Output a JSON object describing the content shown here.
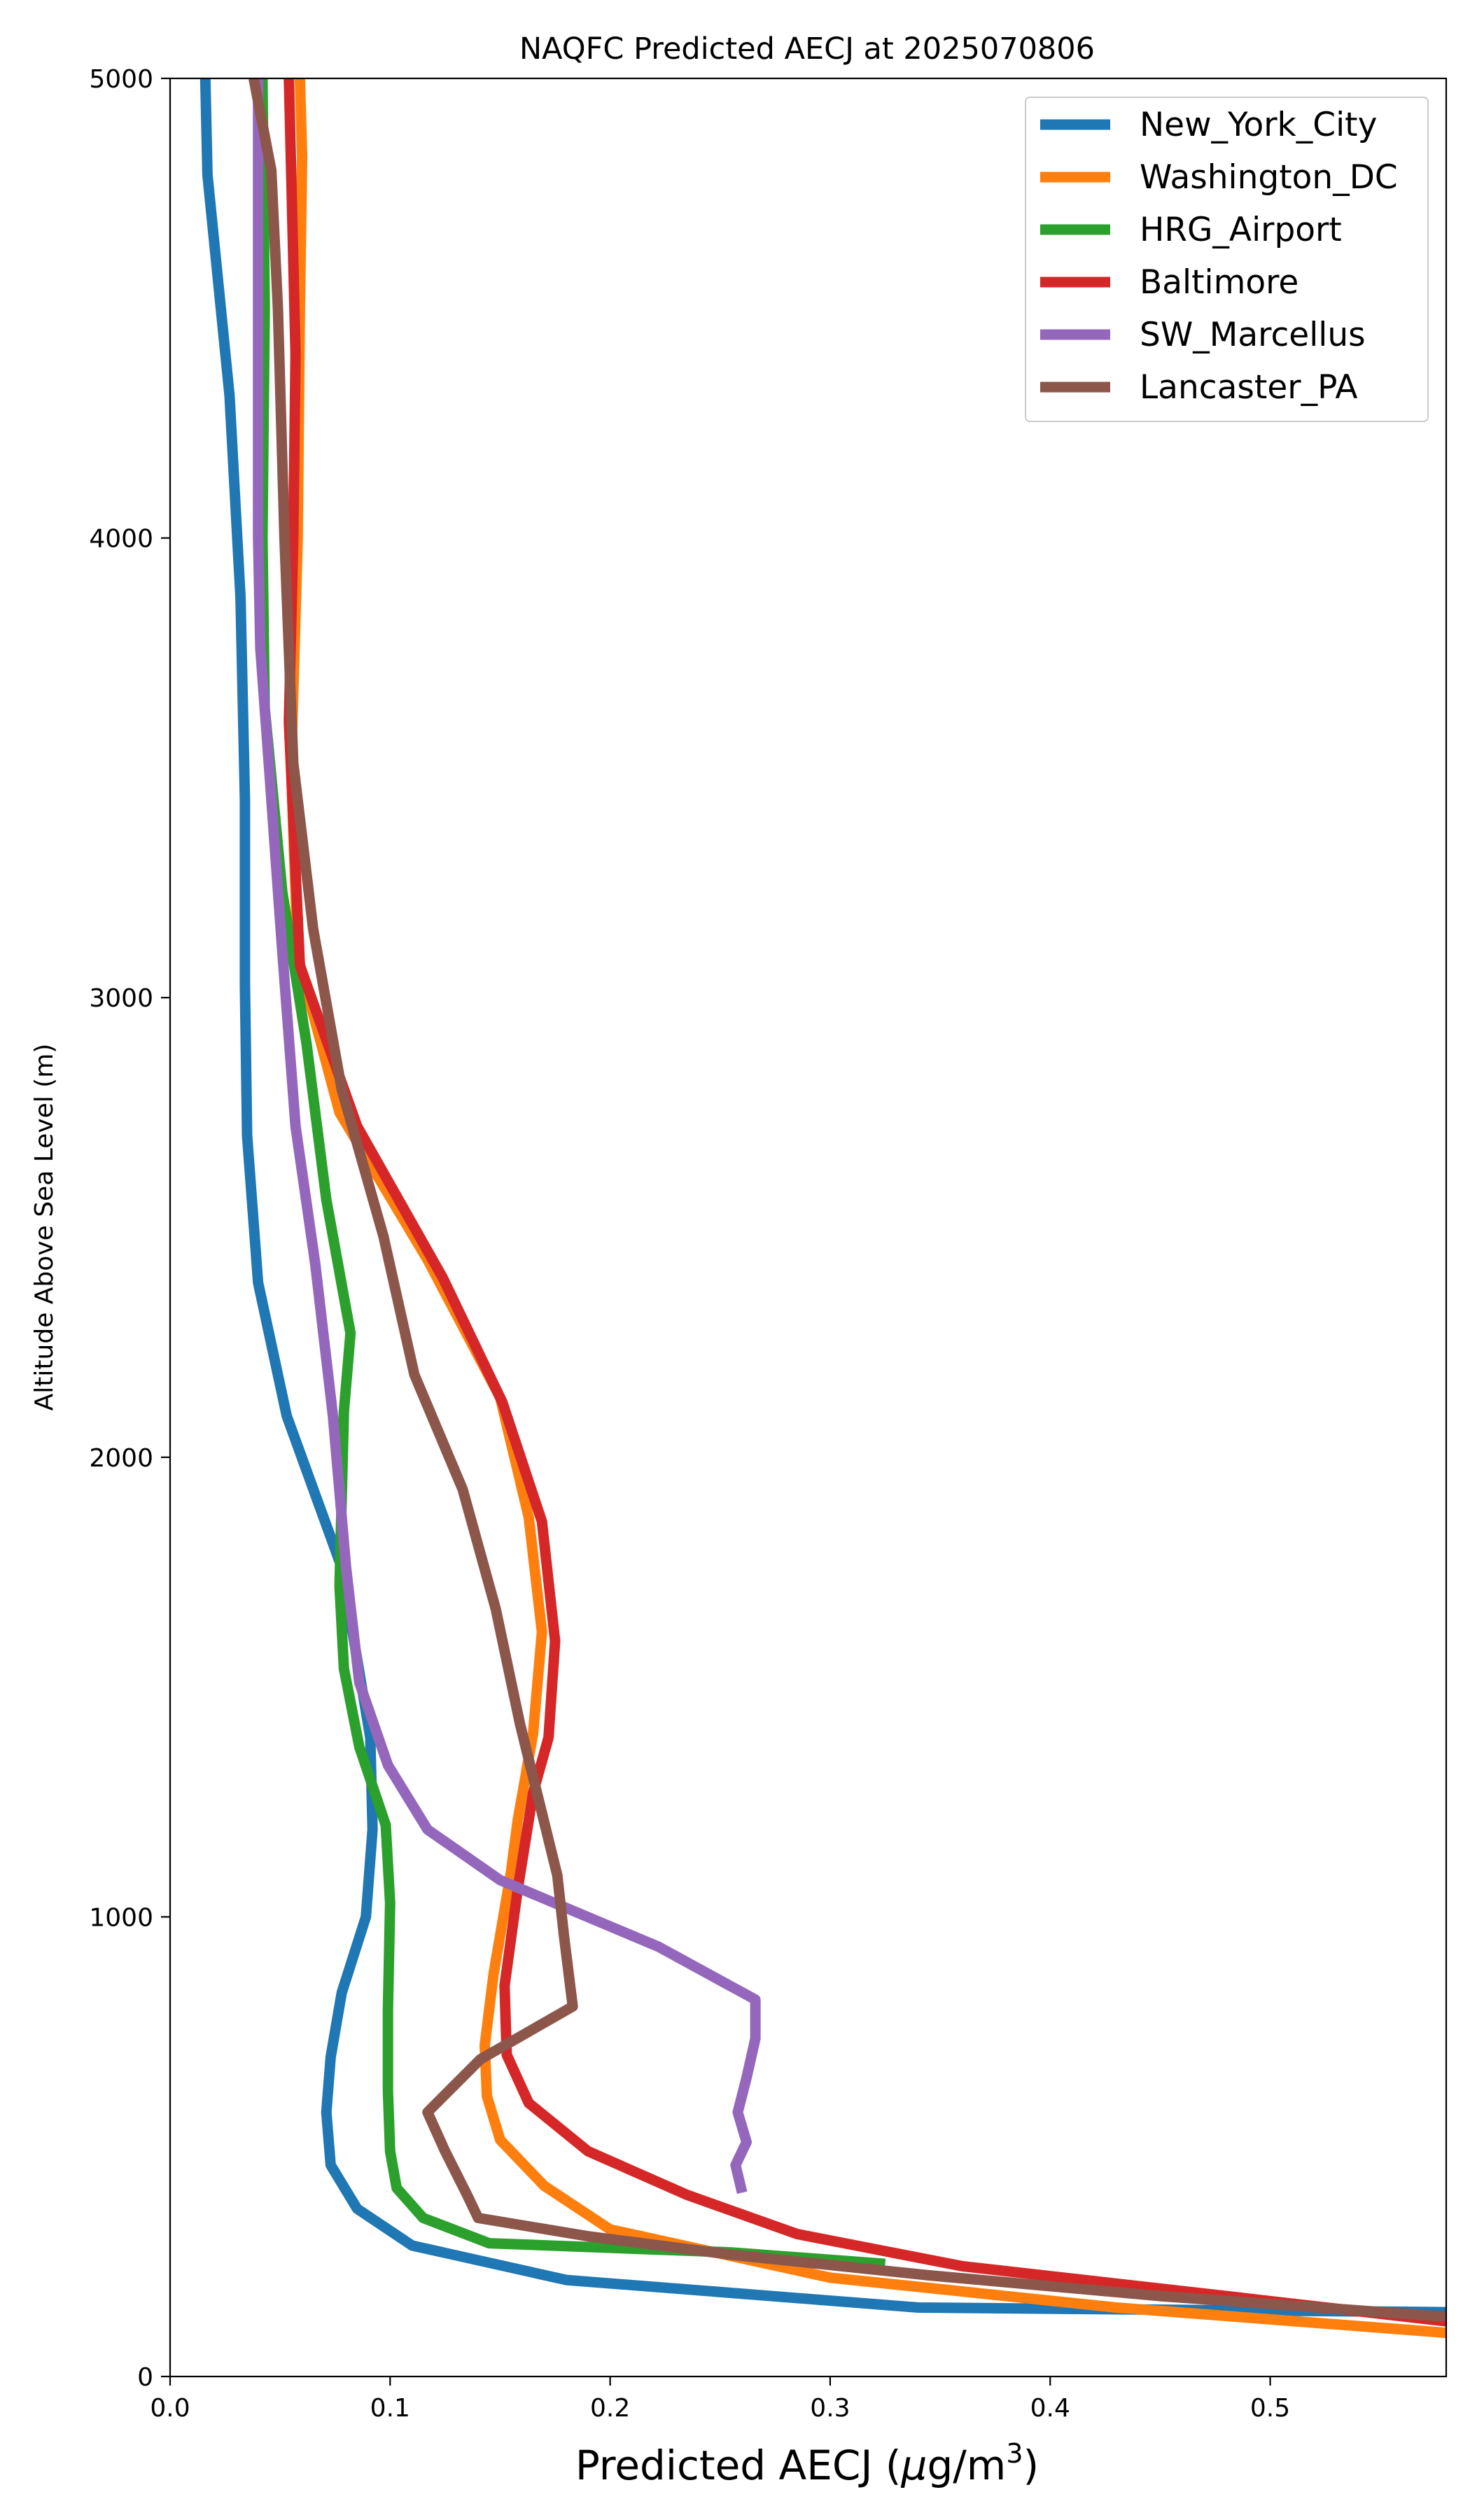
{
  "chart_data": {
    "type": "line",
    "title": "NAQFC Predicted AECJ at 2025070806",
    "xlabel": "Predicted AECJ (μg/m³)",
    "xlabel_parts": {
      "main": "Predicted AECJ (",
      "mu": "μ",
      "unit": "g/m",
      "sup": "3",
      "close": ")"
    },
    "ylabel": "Altitude Above Sea Level (m)",
    "xlim": [
      0.0,
      0.58
    ],
    "ylim": [
      0,
      5000
    ],
    "xticks": [
      {
        "value": 0.0,
        "label": "0.0"
      },
      {
        "value": 0.1,
        "label": "0.1"
      },
      {
        "value": 0.2,
        "label": "0.2"
      },
      {
        "value": 0.3,
        "label": "0.3"
      },
      {
        "value": 0.4,
        "label": "0.4"
      },
      {
        "value": 0.5,
        "label": "0.5"
      }
    ],
    "yticks": [
      {
        "value": 0,
        "label": "0"
      },
      {
        "value": 1000,
        "label": "1000"
      },
      {
        "value": 2000,
        "label": "2000"
      },
      {
        "value": 3000,
        "label": "3000"
      },
      {
        "value": 4000,
        "label": "4000"
      },
      {
        "value": 5000,
        "label": "5000"
      }
    ],
    "grid": false,
    "legend_position": "top-right",
    "series": [
      {
        "name": "New_York_City",
        "color": "#1f77b4",
        "points": [
          [
            0.58,
            140
          ],
          [
            0.34,
            150
          ],
          [
            0.18,
            210
          ],
          [
            0.11,
            285
          ],
          [
            0.085,
            365
          ],
          [
            0.073,
            460
          ],
          [
            0.071,
            575
          ],
          [
            0.073,
            695
          ],
          [
            0.078,
            835
          ],
          [
            0.089,
            1000
          ],
          [
            0.092,
            1190
          ],
          [
            0.091,
            1390
          ],
          [
            0.078,
            1760
          ],
          [
            0.053,
            2090
          ],
          [
            0.04,
            2380
          ],
          [
            0.035,
            2700
          ],
          [
            0.034,
            3030
          ],
          [
            0.034,
            3430
          ],
          [
            0.032,
            3870
          ],
          [
            0.027,
            4310
          ],
          [
            0.017,
            4790
          ],
          [
            0.016,
            5000
          ]
        ]
      },
      {
        "name": "Washington_DC",
        "color": "#ff7f0e",
        "points": [
          [
            0.58,
            95
          ],
          [
            0.43,
            150
          ],
          [
            0.3,
            215
          ],
          [
            0.2,
            320
          ],
          [
            0.17,
            415
          ],
          [
            0.15,
            515
          ],
          [
            0.144,
            610
          ],
          [
            0.143,
            720
          ],
          [
            0.147,
            875
          ],
          [
            0.155,
            1100
          ],
          [
            0.158,
            1210
          ],
          [
            0.165,
            1400
          ],
          [
            0.169,
            1620
          ],
          [
            0.163,
            1870
          ],
          [
            0.15,
            2130
          ],
          [
            0.117,
            2430
          ],
          [
            0.077,
            2750
          ],
          [
            0.058,
            3090
          ],
          [
            0.055,
            3500
          ],
          [
            0.058,
            4000
          ],
          [
            0.059,
            4500
          ],
          [
            0.06,
            4830
          ],
          [
            0.059,
            5000
          ]
        ]
      },
      {
        "name": "HRG_Airport",
        "color": "#2ca02c",
        "points": [
          [
            0.325,
            245
          ],
          [
            0.255,
            270
          ],
          [
            0.145,
            290
          ],
          [
            0.115,
            345
          ],
          [
            0.103,
            410
          ],
          [
            0.1,
            490
          ],
          [
            0.099,
            620
          ],
          [
            0.099,
            800
          ],
          [
            0.1,
            1030
          ],
          [
            0.098,
            1200
          ],
          [
            0.086,
            1370
          ],
          [
            0.079,
            1540
          ],
          [
            0.077,
            1720
          ],
          [
            0.079,
            2100
          ],
          [
            0.082,
            2270
          ],
          [
            0.071,
            2560
          ],
          [
            0.062,
            2900
          ],
          [
            0.051,
            3230
          ],
          [
            0.043,
            3630
          ],
          [
            0.042,
            4000
          ],
          [
            0.043,
            4500
          ],
          [
            0.042,
            5000
          ]
        ]
      },
      {
        "name": "Baltimore",
        "color": "#d62728",
        "points": [
          [
            0.58,
            120
          ],
          [
            0.48,
            175
          ],
          [
            0.36,
            240
          ],
          [
            0.285,
            310
          ],
          [
            0.235,
            395
          ],
          [
            0.19,
            490
          ],
          [
            0.163,
            595
          ],
          [
            0.153,
            700
          ],
          [
            0.152,
            850
          ],
          [
            0.158,
            1060
          ],
          [
            0.165,
            1270
          ],
          [
            0.172,
            1390
          ],
          [
            0.175,
            1600
          ],
          [
            0.169,
            1860
          ],
          [
            0.151,
            2120
          ],
          [
            0.124,
            2390
          ],
          [
            0.085,
            2720
          ],
          [
            0.059,
            3070
          ],
          [
            0.054,
            3600
          ],
          [
            0.056,
            4000
          ],
          [
            0.057,
            4400
          ],
          [
            0.055,
            4800
          ],
          [
            0.054,
            5000
          ]
        ]
      },
      {
        "name": "SW_Marcellus",
        "color": "#9467bd",
        "points": [
          [
            0.26,
            400
          ],
          [
            0.257,
            460
          ],
          [
            0.262,
            510
          ],
          [
            0.258,
            575
          ],
          [
            0.262,
            650
          ],
          [
            0.266,
            735
          ],
          [
            0.266,
            820
          ],
          [
            0.222,
            935
          ],
          [
            0.15,
            1080
          ],
          [
            0.117,
            1190
          ],
          [
            0.099,
            1330
          ],
          [
            0.086,
            1510
          ],
          [
            0.08,
            1760
          ],
          [
            0.074,
            2090
          ],
          [
            0.066,
            2420
          ],
          [
            0.057,
            2720
          ],
          [
            0.051,
            3100
          ],
          [
            0.045,
            3500
          ],
          [
            0.041,
            3760
          ],
          [
            0.04,
            4000
          ],
          [
            0.04,
            4500
          ],
          [
            0.04,
            5000
          ]
        ]
      },
      {
        "name": "Lancaster_PA",
        "color": "#8c564b",
        "points": [
          [
            0.58,
            130
          ],
          [
            0.45,
            175
          ],
          [
            0.345,
            220
          ],
          [
            0.255,
            265
          ],
          [
            0.19,
            305
          ],
          [
            0.14,
            345
          ],
          [
            0.135,
            395
          ],
          [
            0.125,
            490
          ],
          [
            0.117,
            575
          ],
          [
            0.141,
            690
          ],
          [
            0.183,
            805
          ],
          [
            0.179,
            960
          ],
          [
            0.176,
            1090
          ],
          [
            0.159,
            1420
          ],
          [
            0.148,
            1670
          ],
          [
            0.133,
            1930
          ],
          [
            0.111,
            2180
          ],
          [
            0.097,
            2480
          ],
          [
            0.078,
            2800
          ],
          [
            0.065,
            3150
          ],
          [
            0.056,
            3510
          ],
          [
            0.052,
            4000
          ],
          [
            0.049,
            4500
          ],
          [
            0.046,
            4800
          ],
          [
            0.038,
            5000
          ]
        ]
      }
    ]
  }
}
